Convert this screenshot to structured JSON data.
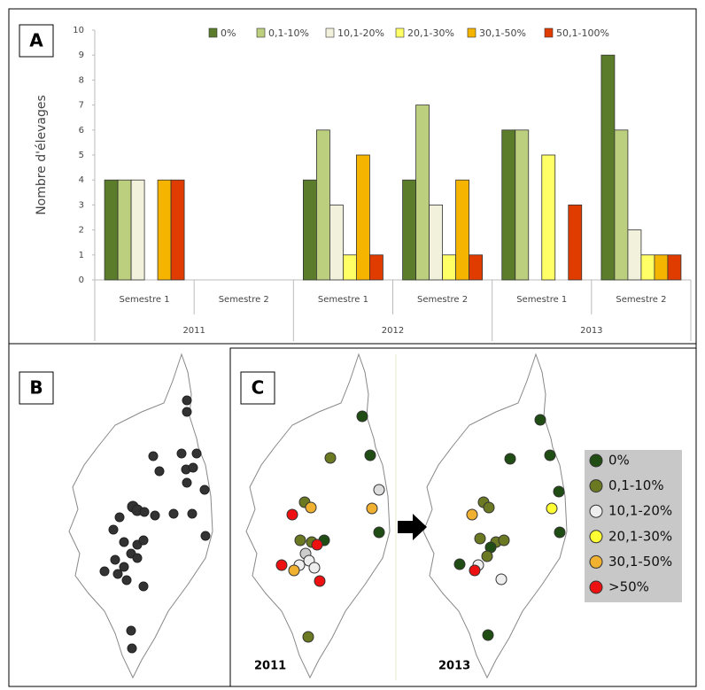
{
  "chart_data": {
    "type": "bar",
    "ylabel": "Nombre d'élevages",
    "groups": [
      {
        "label": "2011",
        "categories": [
          "Semestre 1",
          "Semestre 2"
        ]
      },
      {
        "label": "2012",
        "categories": [
          "Semestre 1",
          "Semestre 2"
        ]
      },
      {
        "label": "2013",
        "categories": [
          "Semestre 1",
          "Semestre 2"
        ]
      }
    ],
    "series": [
      {
        "name": "0%",
        "color": "#5b7d2b",
        "values": [
          4,
          0,
          4,
          4,
          6,
          9
        ]
      },
      {
        "name": "0,1-10%",
        "color": "#bccf7e",
        "values": [
          4,
          0,
          6,
          7,
          6,
          6
        ]
      },
      {
        "name": "10,1-20%",
        "color": "#f1f1dc",
        "values": [
          4,
          0,
          3,
          3,
          0,
          2
        ]
      },
      {
        "name": "20,1-30%",
        "color": "#ffff66",
        "values": [
          0,
          0,
          1,
          1,
          5,
          1
        ]
      },
      {
        "name": "30,1-50%",
        "color": "#f4b400",
        "values": [
          4,
          0,
          5,
          4,
          0,
          1
        ]
      },
      {
        "name": "50,1-100%",
        "color": "#e03c00",
        "values": [
          4,
          0,
          1,
          1,
          3,
          1
        ]
      }
    ],
    "ylim": [
      0,
      10
    ],
    "yticks": [
      0,
      1,
      2,
      3,
      4,
      5,
      6,
      7,
      8,
      9,
      10
    ],
    "grid": false
  },
  "panels": {
    "a": "A",
    "b": "B",
    "c": "C"
  },
  "map_years": [
    "2011",
    "2013"
  ],
  "map_legend": [
    {
      "label": "0%",
      "color": "#1f4d13"
    },
    {
      "label": "0,1-10%",
      "color": "#6b7a22"
    },
    {
      "label": "10,1-20%",
      "color": "#eeeeee"
    },
    {
      "label": "20,1-30%",
      "color": "#ffff33"
    },
    {
      "label": "30,1-50%",
      "color": "#f0b030"
    },
    {
      "label": ">50%",
      "color": "#ee1111"
    }
  ]
}
